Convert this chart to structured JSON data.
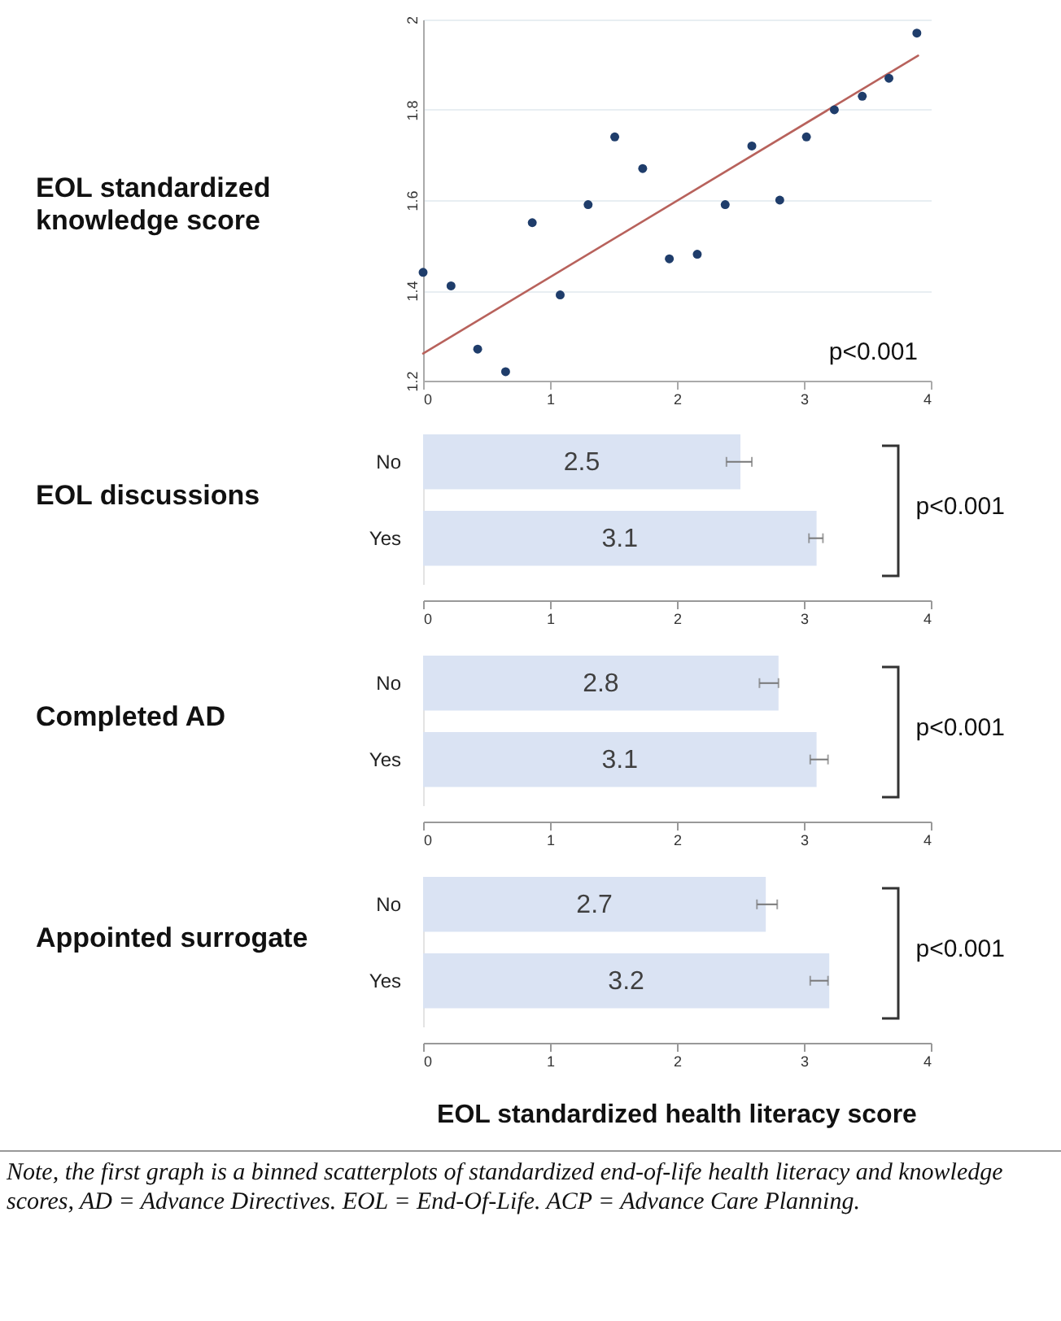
{
  "chart_data": [
    {
      "type": "scatter",
      "ylabel": "EOL standardized knowledge score",
      "x": [
        0,
        0.22,
        0.43,
        0.65,
        0.86,
        1.08,
        1.3,
        1.51,
        1.73,
        1.94,
        2.16,
        2.38,
        2.59,
        2.81,
        3.02,
        3.24,
        3.46,
        3.67,
        3.89
      ],
      "grid": "y",
      "xlim": [
        0,
        4
      ],
      "xticks": [
        0,
        1,
        2,
        3,
        4
      ],
      "ylim": [
        1.2,
        2
      ],
      "yticks": [
        1.2,
        1.4,
        1.6,
        1.8,
        2
      ],
      "annotations": [
        "p<0.001"
      ],
      "series": [
        {
          "color": "#1f3d6b",
          "marker": "circle",
          "values": [
            1.44,
            1.41,
            1.27,
            1.22,
            1.55,
            1.39,
            1.59,
            1.74,
            1.67,
            1.47,
            1.48,
            1.59,
            1.72,
            1.6,
            1.74,
            1.8,
            1.83,
            1.87,
            1.97
          ]
        },
        {
          "type": "line",
          "color": "#b8625c",
          "x": [
            0,
            3.9
          ],
          "values": [
            1.26,
            1.92
          ]
        }
      ]
    },
    {
      "type": "bar",
      "orientation": "horizontal",
      "ylabel": "EOL discussions",
      "categories": [
        "No",
        "Yes"
      ],
      "values": [
        2.5,
        3.1
      ],
      "errors": [
        [
          2.39,
          2.59
        ],
        [
          3.04,
          3.15
        ]
      ],
      "color": "#dae3f3",
      "data_labels": true,
      "xlim": [
        0,
        4
      ],
      "xticks": [
        0,
        1,
        2,
        3,
        4
      ],
      "annotations": [
        "p<0.001"
      ]
    },
    {
      "type": "bar",
      "orientation": "horizontal",
      "ylabel": "Completed AD",
      "categories": [
        "No",
        "Yes"
      ],
      "values": [
        2.8,
        3.1
      ],
      "errors": [
        [
          2.65,
          2.8
        ],
        [
          3.05,
          3.19
        ]
      ],
      "color": "#dae3f3",
      "data_labels": true,
      "xlim": [
        0,
        4
      ],
      "xticks": [
        0,
        1,
        2,
        3,
        4
      ],
      "annotations": [
        "p<0.001"
      ]
    },
    {
      "type": "bar",
      "orientation": "horizontal",
      "ylabel": "Appointed surrogate",
      "xlabel": "EOL standardized health literacy score",
      "categories": [
        "No",
        "Yes"
      ],
      "values": [
        2.7,
        3.2
      ],
      "errors": [
        [
          2.63,
          2.79
        ],
        [
          3.05,
          3.19
        ]
      ],
      "color": "#dae3f3",
      "data_labels": true,
      "xlim": [
        0,
        4
      ],
      "xticks": [
        0,
        1,
        2,
        3,
        4
      ],
      "annotations": [
        "p<0.001",
        "Note, the first graph is a binned scatterplots of standardized end-of-life health literacy and knowledge scores, AD = Advance Directives. EOL = End-Of-Life. ACP = Advance Care Planning."
      ]
    }
  ]
}
